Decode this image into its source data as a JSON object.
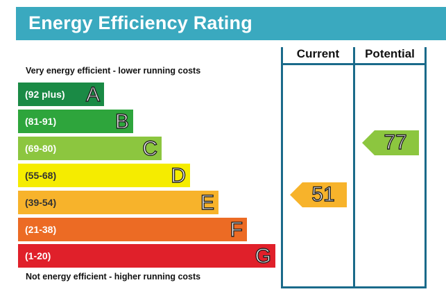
{
  "title": "Energy Efficiency Rating",
  "columns": {
    "current": "Current",
    "potential": "Potential"
  },
  "top_caption": "Very energy efficient - lower running costs",
  "bottom_caption": "Not energy efficient - higher running costs",
  "bands": [
    {
      "range": "(92 plus)",
      "letter": "A",
      "color": "#1a8a45"
    },
    {
      "range": "(81-91)",
      "letter": "B",
      "color": "#2ea53c"
    },
    {
      "range": "(69-80)",
      "letter": "C",
      "color": "#8cc63f"
    },
    {
      "range": "(55-68)",
      "letter": "D",
      "color": "#f5ec00"
    },
    {
      "range": "(39-54)",
      "letter": "E",
      "color": "#f7b32b"
    },
    {
      "range": "(21-38)",
      "letter": "F",
      "color": "#ec6b24"
    },
    {
      "range": "(1-20)",
      "letter": "G",
      "color": "#e0202a"
    }
  ],
  "current": {
    "value": "51",
    "band": "E",
    "color": "#f7b32b"
  },
  "potential": {
    "value": "77",
    "band": "C",
    "color": "#8cc63f"
  }
}
